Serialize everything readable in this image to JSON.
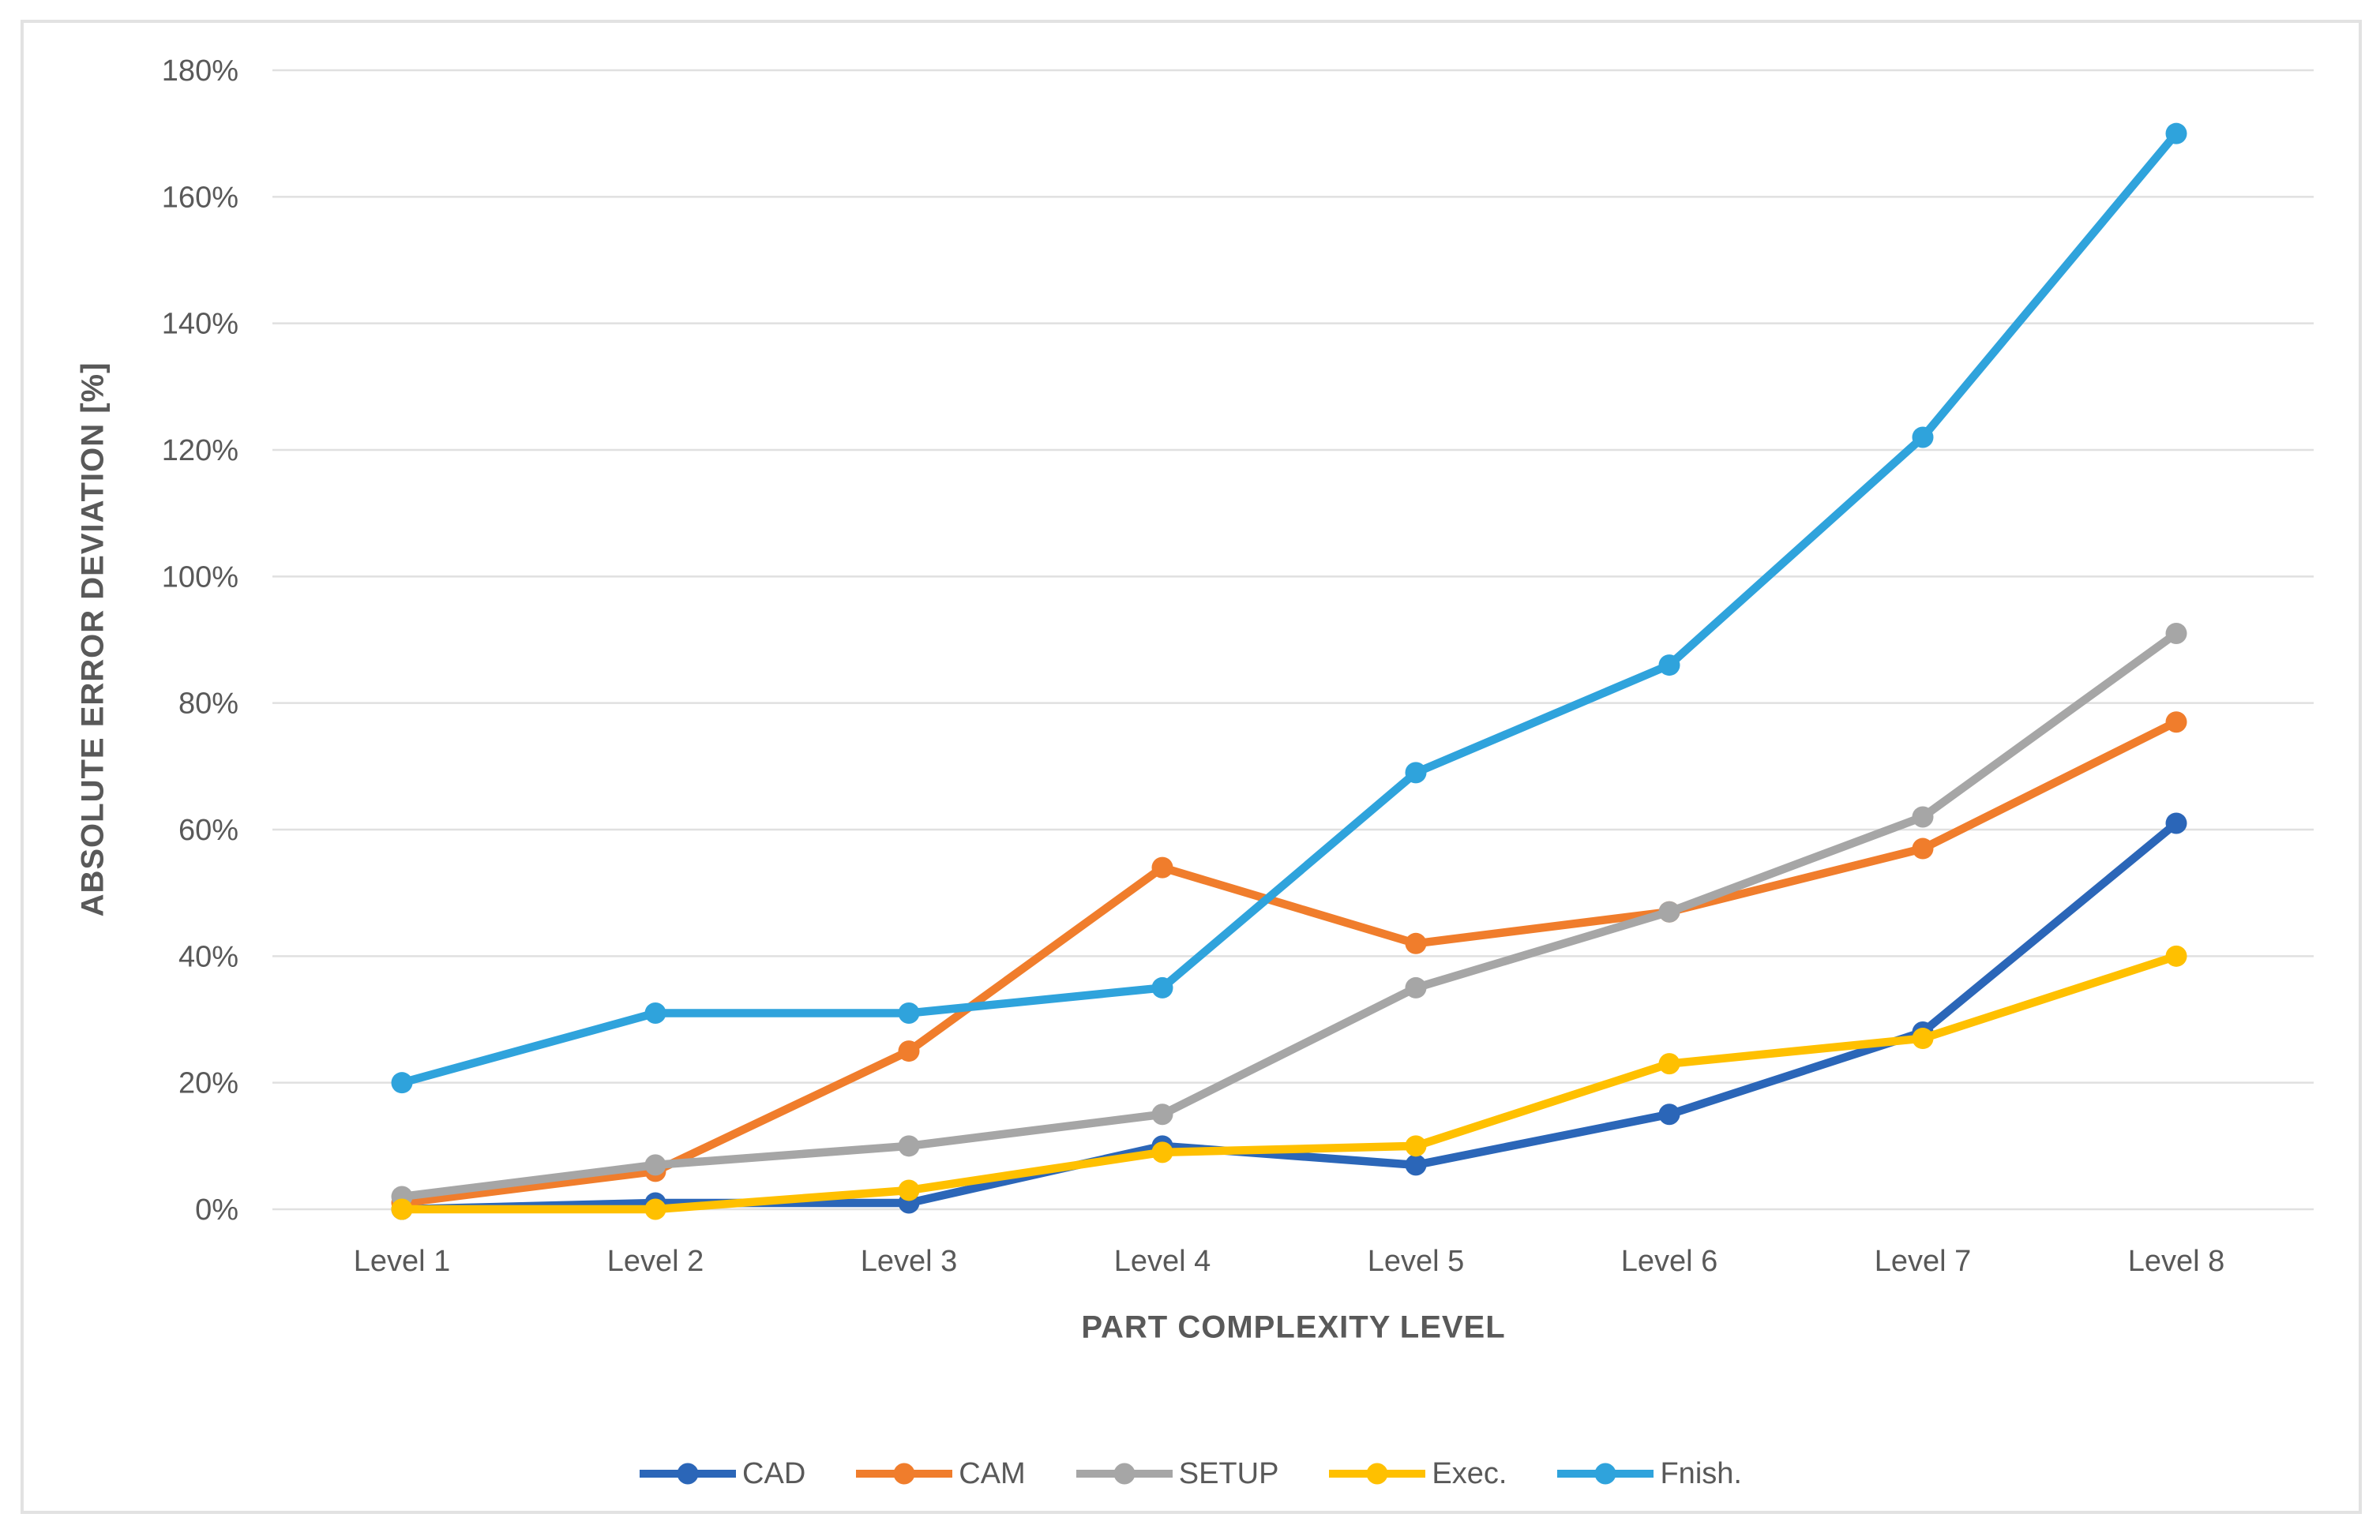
{
  "figure": {
    "background_color": "#FFFFFF",
    "frame_border_color": "#E2E2E2",
    "text_color": "#595959",
    "gridline_color": "#E0E0E0"
  },
  "chart_data": {
    "type": "line",
    "title": "",
    "xlabel": "PART COMPLEXITY LEVEL",
    "ylabel": "ABSOLUTE ERROR DEVIATION [%]",
    "categories": [
      "Level 1",
      "Level 2",
      "Level 3",
      "Level 4",
      "Level 5",
      "Level 6",
      "Level 7",
      "Level 8"
    ],
    "y_tick_labels": [
      "0%",
      "20%",
      "40%",
      "60%",
      "80%",
      "100%",
      "120%",
      "140%",
      "160%",
      "180%"
    ],
    "y_tick_values": [
      0,
      20,
      40,
      60,
      80,
      100,
      120,
      140,
      160,
      180
    ],
    "ylim": [
      0,
      180
    ],
    "grid": true,
    "legend_position": "bottom",
    "marker": "circle",
    "series": [
      {
        "name": "CAD",
        "color": "#2B66B8",
        "values": [
          0,
          1,
          1,
          10,
          7,
          15,
          28,
          61
        ]
      },
      {
        "name": "CAM",
        "color": "#F07D2C",
        "values": [
          1,
          6,
          25,
          54,
          42,
          47,
          57,
          77
        ]
      },
      {
        "name": "SETUP",
        "color": "#A6A6A6",
        "values": [
          2,
          7,
          10,
          15,
          35,
          47,
          62,
          91
        ]
      },
      {
        "name": "Exec.",
        "color": "#FFC000",
        "values": [
          0,
          0,
          3,
          9,
          10,
          23,
          27,
          40
        ]
      },
      {
        "name": "Fnish.",
        "color": "#2FA3DC",
        "values": [
          20,
          31,
          31,
          35,
          69,
          86,
          122,
          170
        ]
      }
    ]
  }
}
